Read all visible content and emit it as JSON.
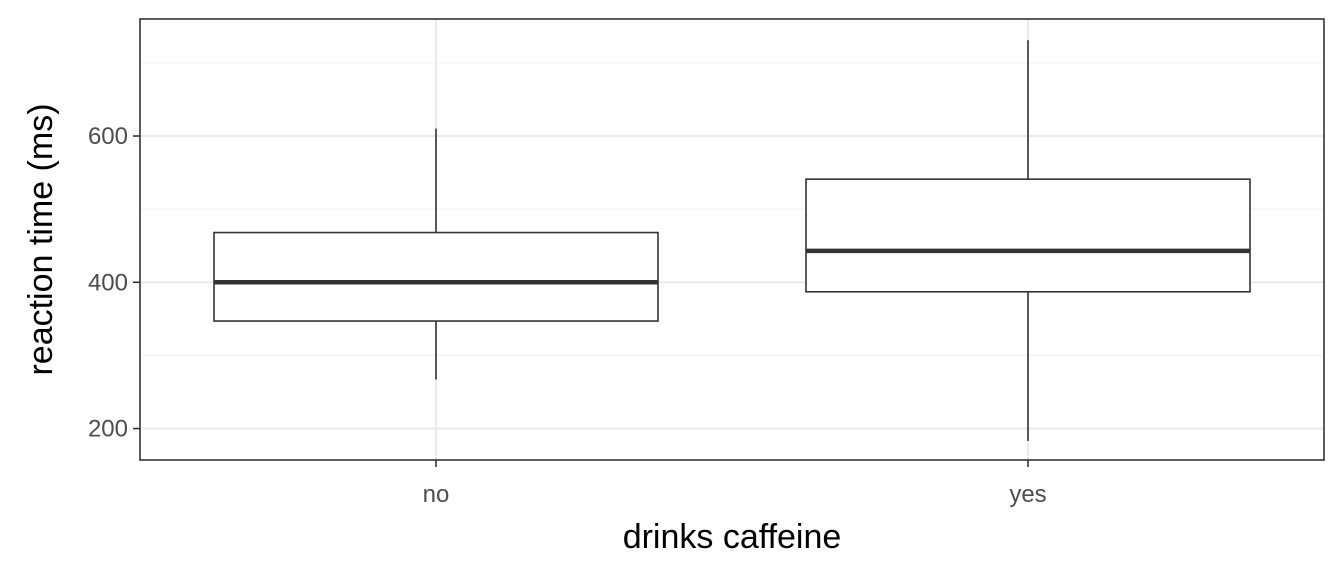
{
  "chart_data": {
    "type": "boxplot",
    "xlabel": "drinks caffeine",
    "ylabel": "reaction time (ms)",
    "categories": [
      "no",
      "yes"
    ],
    "boxes": [
      {
        "category": "no",
        "whisker_low": 267,
        "q1": 347,
        "median": 400,
        "q3": 468,
        "whisker_high": 610
      },
      {
        "category": "yes",
        "whisker_low": 183,
        "q1": 387,
        "median": 443,
        "q3": 541,
        "whisker_high": 731
      }
    ],
    "ylim": [
      157,
      760
    ],
    "y_ticks": [
      200,
      400,
      600
    ],
    "y_tick_labels": [
      "200",
      "400",
      "600"
    ],
    "y_minor_ticks": [
      300,
      500,
      700
    ],
    "grid": true,
    "legend": "none",
    "colors": {
      "box_fill": "#ffffff",
      "box_stroke": "#333333",
      "grid": "#ebebeb",
      "background": "#ffffff"
    }
  }
}
